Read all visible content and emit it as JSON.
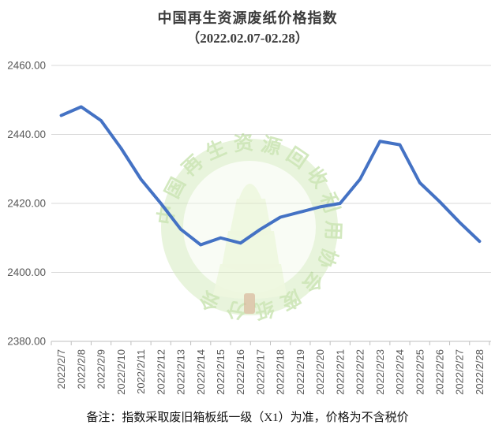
{
  "title": {
    "line1": "中国再生资源废纸价格指数",
    "line2": "（2022.02.07-02.28）"
  },
  "footer": {
    "note": "备注：指数采取废旧箱板纸一级（X1）为准，价格为不含税价"
  },
  "watermark": {
    "text": "中国再生资源回收利用协会废纸分会",
    "ring_color": "#cde7b0",
    "disc_color": "#f2f8ea",
    "text_color": "#9ccd72",
    "tree_leaf_color": "#dff0c2",
    "tree_trunk_color": "#b4713a"
  },
  "colors": {
    "line": "#4472C4",
    "gridline": "#d9d9d9",
    "axis": "#bfbfbf",
    "tick_text": "#595959"
  },
  "chart_data": {
    "type": "line",
    "title": "中国再生资源废纸价格指数（2022.02.07-02.28）",
    "xlabel": "",
    "ylabel": "",
    "ylim": [
      2380,
      2460
    ],
    "grid": true,
    "legend": "none",
    "categories": [
      "2022/2/7",
      "2022/2/8",
      "2022/2/9",
      "2022/2/10",
      "2022/2/11",
      "2022/2/12",
      "2022/2/13",
      "2022/2/14",
      "2022/2/15",
      "2022/2/16",
      "2022/2/17",
      "2022/2/18",
      "2022/2/19",
      "2022/2/20",
      "2022/2/21",
      "2022/2/22",
      "2022/2/23",
      "2022/2/24",
      "2022/2/25",
      "2022/2/26",
      "2022/2/27",
      "2022/2/28"
    ],
    "values": [
      2445.5,
      2448,
      2444,
      2436,
      2427,
      2420,
      2412.5,
      2408,
      2410,
      2408.5,
      2412.5,
      2416,
      2417.5,
      2419,
      2420,
      2427,
      2438,
      2437,
      2426,
      2420.5,
      2414.5,
      2409
    ],
    "y_tick_values": [
      2380,
      2400,
      2420,
      2440,
      2460
    ],
    "y_tick_labels": [
      "2380.00",
      "2400.00",
      "2420.00",
      "2440.00",
      "2460.00"
    ]
  }
}
